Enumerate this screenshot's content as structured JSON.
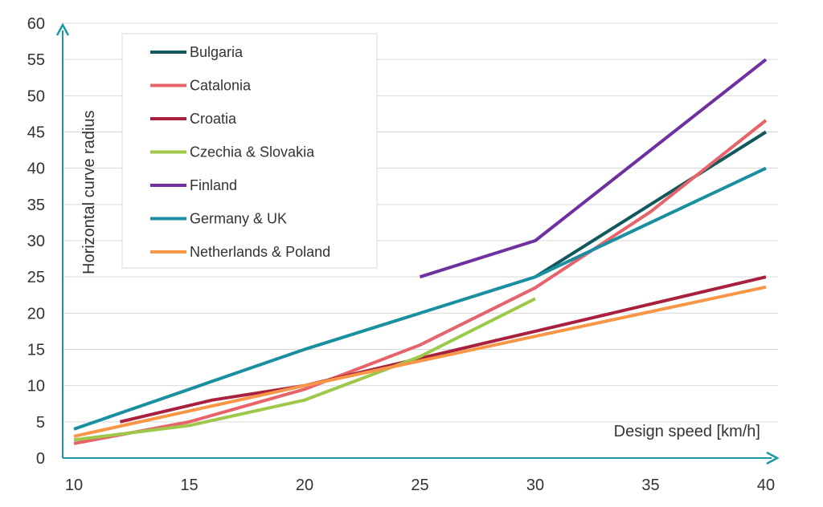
{
  "chart_data": {
    "type": "line",
    "xlabel": "Design speed [km/h]",
    "ylabel": "Horizontal curve radius",
    "xlim": [
      10,
      40
    ],
    "ylim": [
      0,
      60
    ],
    "x_ticks": [
      "10",
      "15",
      "20",
      "25",
      "30",
      "35",
      "40"
    ],
    "y_ticks": [
      "0",
      "5",
      "10",
      "15",
      "20",
      "25",
      "30",
      "35",
      "40",
      "45",
      "50",
      "55",
      "60"
    ],
    "grid": "horizontal",
    "legend_position": "top-left",
    "axis_color": "#1a9aa5",
    "series": [
      {
        "name": "Bulgaria",
        "color": "#12585c",
        "points": [
          [
            30,
            25
          ],
          [
            40,
            45
          ]
        ]
      },
      {
        "name": "Catalonia",
        "color": "#e8626a",
        "points": [
          [
            10,
            2
          ],
          [
            15,
            5
          ],
          [
            20,
            9.5
          ],
          [
            25,
            15.6
          ],
          [
            30,
            23.5
          ],
          [
            35,
            34
          ],
          [
            40,
            46.6
          ]
        ]
      },
      {
        "name": "Croatia",
        "color": "#a8203e",
        "points": [
          [
            12,
            5
          ],
          [
            16,
            8
          ],
          [
            20,
            10
          ],
          [
            30,
            17.5
          ],
          [
            40,
            25
          ]
        ]
      },
      {
        "name": "Czechia & Slovakia",
        "color": "#9dc84a",
        "points": [
          [
            10,
            2.5
          ],
          [
            15,
            4.5
          ],
          [
            20,
            8
          ],
          [
            25,
            14
          ],
          [
            30,
            22
          ]
        ]
      },
      {
        "name": "Finland",
        "color": "#7030a0",
        "points": [
          [
            25,
            25
          ],
          [
            30,
            30
          ],
          [
            40,
            55
          ]
        ]
      },
      {
        "name": "Germany & UK",
        "color": "#1a8fa0",
        "points": [
          [
            10,
            4
          ],
          [
            20,
            15
          ],
          [
            30,
            25
          ],
          [
            40,
            40
          ]
        ]
      },
      {
        "name": "Netherlands & Poland",
        "color": "#f79646",
        "points": [
          [
            10,
            3
          ],
          [
            15,
            6.5
          ],
          [
            20,
            10
          ],
          [
            30,
            16.8
          ],
          [
            40,
            23.6
          ]
        ]
      }
    ]
  }
}
